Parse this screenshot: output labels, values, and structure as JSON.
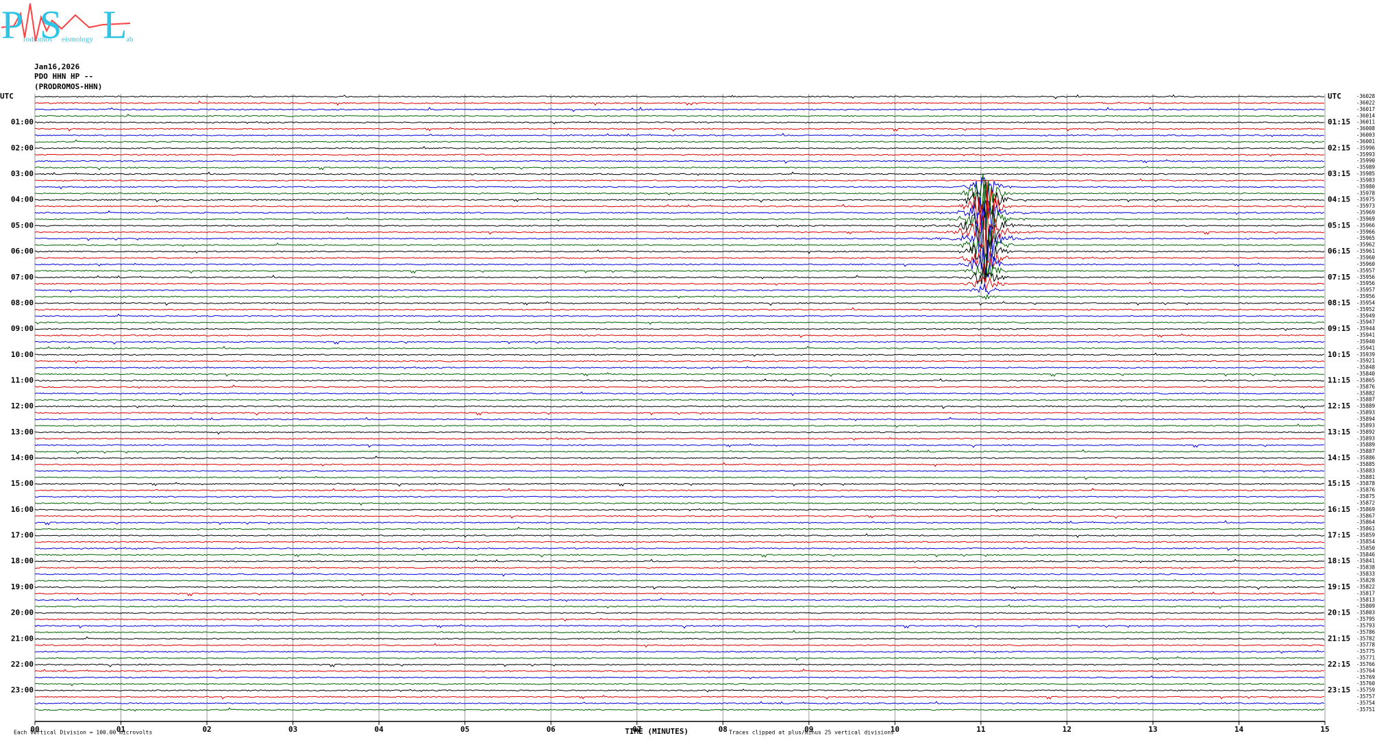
{
  "header": {
    "logo_letters": [
      "P",
      "S",
      "L"
    ],
    "logo_words": [
      "rodromos",
      "eismology",
      "ab"
    ],
    "date": "Jan16,2026",
    "station": "PDO HHN HP --",
    "location": "(PRODROMOS-HHN)"
  },
  "left_labels": [
    "UTC",
    "01:00",
    "02:00",
    "03:00",
    "04:00",
    "05:00",
    "06:00",
    "07:00",
    "08:00",
    "09:00",
    "10:00",
    "11:00",
    "12:00",
    "13:00",
    "14:00",
    "15:00",
    "16:00",
    "17:00",
    "18:00",
    "19:00",
    "20:00",
    "21:00",
    "22:00",
    "23:00"
  ],
  "right_labels": [
    "UTC",
    "01:15",
    "02:15",
    "03:15",
    "04:15",
    "05:15",
    "06:15",
    "07:15",
    "08:15",
    "09:15",
    "10:15",
    "11:15",
    "12:15",
    "13:15",
    "14:15",
    "15:15",
    "16:15",
    "17:15",
    "18:15",
    "19:15",
    "20:15",
    "21:15",
    "22:15",
    "23:15"
  ],
  "offsets": [
    -36028,
    -36022,
    -36017,
    -36014,
    -36011,
    -36008,
    -36003,
    -36001,
    -35996,
    -35993,
    -35990,
    -35989,
    -35985,
    -35983,
    -35980,
    -35978,
    -35975,
    -35973,
    -35969,
    -35969,
    -35966,
    -35966,
    -35965,
    -35962,
    -35961,
    -35960,
    -35960,
    -35957,
    -35956,
    -35956,
    -35957,
    -35956,
    -35954,
    -35952,
    -35949,
    -35947,
    -35944,
    -35941,
    -35940,
    -35941,
    -35939,
    -35921,
    -35848,
    -35840,
    -35865,
    -35876,
    -35882,
    -35887,
    -35889,
    -35893,
    -35894,
    -35893,
    -35892,
    -35893,
    -35889,
    -35887,
    -35886,
    -35885,
    -35883,
    -35881,
    -35878,
    -35876,
    -35875,
    -35872,
    -35869,
    -35867,
    -35864,
    -35861,
    -35859,
    -35854,
    -35850,
    -35846,
    -35841,
    -35838,
    -35833,
    -35828,
    -35822,
    -35817,
    -35813,
    -35809,
    -35803,
    -35795,
    -35793,
    -35786,
    -35782,
    -35778,
    -35775,
    -35771,
    -35766,
    -35764,
    -35769,
    -35760,
    -35759,
    -35757,
    -35754,
    -35751
  ],
  "trace_colors": [
    "#000000",
    "#e00000",
    "#0000e0",
    "#006400"
  ],
  "x_axis": {
    "ticks": [
      "00",
      "01",
      "02",
      "03",
      "04",
      "05",
      "06",
      "07",
      "08",
      "09",
      "10",
      "11",
      "12",
      "13",
      "14",
      "15"
    ],
    "title": "TIME (MINUTES)"
  },
  "footer": {
    "scale": "Each Vertical Division =  100.00 microvolts",
    "clip": "Traces clipped at plus/minus 25 vertical divisions"
  }
}
